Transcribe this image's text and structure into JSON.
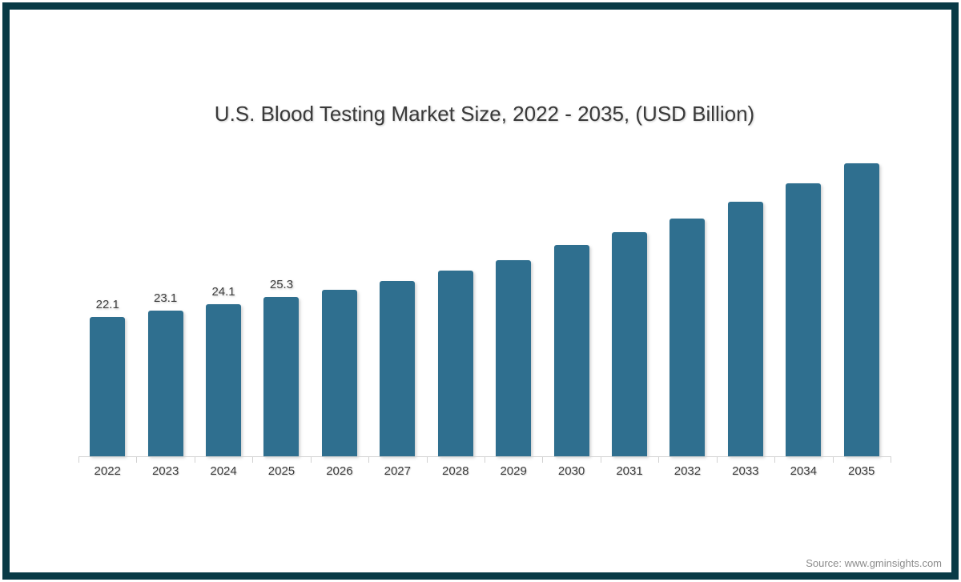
{
  "page": {
    "background": "#ffffff",
    "frame_color": "#093a46"
  },
  "chart_data": {
    "type": "bar",
    "title": "U.S. Blood Testing Market Size, 2022 - 2035, (USD Billion)",
    "categories": [
      "2022",
      "2023",
      "2024",
      "2025",
      "2026",
      "2027",
      "2028",
      "2029",
      "2030",
      "2031",
      "2032",
      "2033",
      "2034",
      "2035"
    ],
    "values": [
      22.1,
      23.1,
      24.1,
      25.3,
      26.4,
      27.8,
      29.5,
      31.1,
      33.5,
      35.6,
      37.7,
      40.4,
      43.3,
      46.5
    ],
    "data_labels": [
      "22.1",
      "23.1",
      "24.1",
      "25.3",
      "",
      "",
      "",
      "",
      "",
      "",
      "",
      "",
      "",
      ""
    ],
    "bar_color": "#2f6f8f",
    "axis_color": "#d2d2d2",
    "text_color": "#3d3d3d",
    "xlabel": "",
    "ylabel": "",
    "ylim": [
      0,
      48
    ],
    "grid": false,
    "legend_position": "none"
  },
  "footer": {
    "source_text": "Source: www.gminsights.com",
    "source_color": "#8c8c8c"
  }
}
